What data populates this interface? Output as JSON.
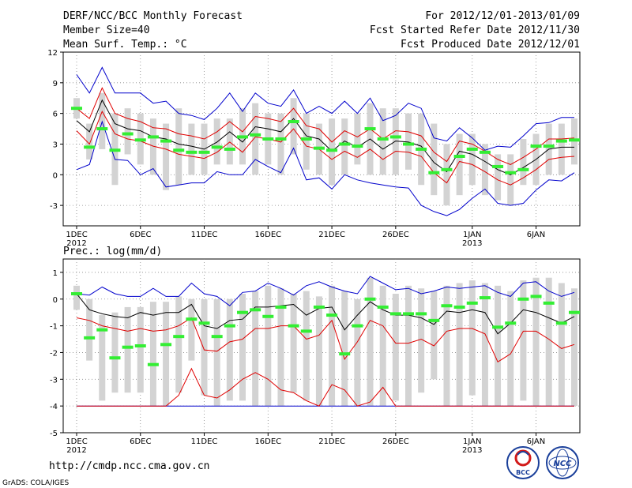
{
  "header": {
    "title": "DERF/NCC/BCC Monthly Forecast",
    "member": "Member Size=40",
    "variable": "Mean Surf. Temp.: °C",
    "period": "For 2012/12/01-2013/01/09",
    "refer": "Fcst Started Refer Date 2012/11/30",
    "produced": "Fcst Produced Date 2012/12/01"
  },
  "footer": {
    "url": "http://cmdp.ncc.cma.gov.cn",
    "credit": "GrADS: COLA/IGES",
    "logo1": "BCC",
    "logo2": "NCC"
  },
  "colors": {
    "box": "#d3d3d3",
    "mean": "#000000",
    "pct": "#e00000",
    "ext": "#0000cc",
    "median": "#33ee33"
  },
  "chart_data": [
    {
      "type": "box",
      "title": "Mean Surf. Temp.: °C",
      "ylim": [
        -5,
        12
      ],
      "yticks": [
        -3,
        0,
        3,
        6,
        9,
        12
      ],
      "xticks": [
        {
          "day": 1,
          "label": "1DEC",
          "sub": "2012"
        },
        {
          "day": 6,
          "label": "6DEC"
        },
        {
          "day": 11,
          "label": "11DEC"
        },
        {
          "day": 16,
          "label": "16DEC"
        },
        {
          "day": 21,
          "label": "21DEC"
        },
        {
          "day": 26,
          "label": "26DEC"
        },
        {
          "day": 32,
          "label": "1JAN",
          "sub": "2013"
        },
        {
          "day": 37,
          "label": "6JAN"
        }
      ],
      "days": [
        1,
        2,
        3,
        4,
        5,
        6,
        7,
        8,
        9,
        10,
        11,
        12,
        13,
        14,
        15,
        16,
        17,
        18,
        19,
        20,
        21,
        22,
        23,
        24,
        25,
        26,
        27,
        28,
        29,
        30,
        31,
        32,
        33,
        34,
        35,
        36,
        37,
        38,
        39,
        40
      ],
      "box_low": [
        5.5,
        1.5,
        2.5,
        -1,
        2,
        1,
        0,
        -1.5,
        -1,
        0,
        0,
        1,
        1,
        1,
        0,
        1,
        0,
        2,
        0.5,
        0,
        -1,
        0,
        1,
        0,
        0,
        0,
        0.5,
        -1,
        -2,
        -3,
        -2,
        -1,
        -2,
        -2.5,
        -3,
        -1,
        -1,
        0,
        0,
        1
      ],
      "box_high": [
        7.5,
        5,
        8,
        6,
        6.5,
        6,
        5.5,
        5,
        6.5,
        5,
        5,
        5.5,
        5.5,
        6.5,
        7,
        6,
        6,
        7.5,
        6,
        5,
        5.5,
        5.5,
        6,
        7,
        6.5,
        6.5,
        6,
        6,
        5,
        3,
        4,
        4,
        3,
        2,
        2,
        3.5,
        4,
        5,
        5,
        5.5
      ],
      "median": [
        6.5,
        2.7,
        4.5,
        2.4,
        4,
        3.4,
        3.7,
        3.3,
        2.4,
        2.2,
        2.2,
        2.7,
        2.5,
        3.7,
        3.9,
        3.5,
        3.5,
        5.2,
        3.5,
        2.6,
        2.4,
        3,
        2.8,
        4.5,
        3.5,
        3.7,
        3,
        2.5,
        0.2,
        0.5,
        1.8,
        2.5,
        2.2,
        0.8,
        0.2,
        0.5,
        2.8,
        2.8,
        3.3,
        3.4
      ],
      "mean": [
        5.3,
        4.2,
        7.3,
        5,
        4.5,
        4.3,
        3.7,
        3.5,
        3,
        2.8,
        2.5,
        3.2,
        4.2,
        3.2,
        4.7,
        4.5,
        4.2,
        5.5,
        3.8,
        3.5,
        2.3,
        3.3,
        2.7,
        3.5,
        2.5,
        3.3,
        3.2,
        2.8,
        1.2,
        0.3,
        2.3,
        2,
        1.3,
        0.5,
        0,
        0.7,
        1.5,
        2.5,
        2.7,
        2.7
      ],
      "pct_high": [
        6.5,
        5.5,
        8.5,
        6,
        5.5,
        5.2,
        4.6,
        4.5,
        4,
        3.8,
        3.5,
        4.2,
        5.2,
        4.2,
        5.7,
        5.5,
        5.2,
        6.5,
        4.8,
        4.5,
        3.2,
        4.3,
        3.7,
        4.5,
        3.5,
        4.3,
        4.2,
        3.8,
        2.2,
        1.3,
        3.3,
        3,
        2.3,
        1.5,
        1,
        1.7,
        2.5,
        3.5,
        3.5,
        3.6
      ],
      "pct_low": [
        4.3,
        3,
        6.2,
        4,
        3.5,
        3.3,
        2.8,
        2.5,
        2,
        1.8,
        1.6,
        2.2,
        3.2,
        2.2,
        3.7,
        3.5,
        3.2,
        4.5,
        2.8,
        2.5,
        1.5,
        2.3,
        1.7,
        2.5,
        1.5,
        2.3,
        2.2,
        1.8,
        0.2,
        -0.8,
        1.3,
        1,
        0.3,
        -0.5,
        -1,
        -0.3,
        0.5,
        1.5,
        1.7,
        1.8
      ],
      "ext_high": [
        9.8,
        8,
        10.5,
        8,
        8,
        8,
        7,
        7.2,
        6,
        5.8,
        5.4,
        6.5,
        8,
        6.2,
        8,
        7,
        6.7,
        8.3,
        6,
        6.7,
        6,
        7.2,
        6,
        7.5,
        5.3,
        5.8,
        7,
        6.5,
        3.6,
        3.3,
        4.6,
        3.6,
        2.4,
        2.8,
        2.7,
        3.8,
        5,
        5.1,
        5.6,
        5.6
      ],
      "ext_low": [
        0.5,
        1,
        5.2,
        1.5,
        1.4,
        0,
        0.6,
        -1.2,
        -1,
        -0.8,
        -0.8,
        0.3,
        0,
        0,
        1.5,
        0.8,
        0.2,
        2.6,
        -0.5,
        -0.3,
        -1.4,
        0,
        -0.5,
        -0.8,
        -1,
        -1.2,
        -1.3,
        -3,
        -3.6,
        -4,
        -3.4,
        -2.3,
        -1.4,
        -2.8,
        -3,
        -2.8,
        -1.5,
        -0.5,
        -0.6,
        0.2
      ]
    },
    {
      "type": "box",
      "title": "Prec.: log(mm/d)",
      "ylim": [
        -5,
        1.5
      ],
      "yticks": [
        -5,
        -4,
        -3,
        -2,
        -1,
        0,
        1
      ],
      "xticks": [
        {
          "day": 1,
          "label": "1DEC",
          "sub": "2012"
        },
        {
          "day": 6,
          "label": "6DEC"
        },
        {
          "day": 11,
          "label": "11DEC"
        },
        {
          "day": 16,
          "label": "16DEC"
        },
        {
          "day": 21,
          "label": "21DEC"
        },
        {
          "day": 26,
          "label": "26DEC"
        },
        {
          "day": 32,
          "label": "1JAN",
          "sub": "2013"
        },
        {
          "day": 37,
          "label": "6JAN"
        }
      ],
      "days": [
        1,
        2,
        3,
        4,
        5,
        6,
        7,
        8,
        9,
        10,
        11,
        12,
        13,
        14,
        15,
        16,
        17,
        18,
        19,
        20,
        21,
        22,
        23,
        24,
        25,
        26,
        27,
        28,
        29,
        30,
        31,
        32,
        33,
        34,
        35,
        36,
        37,
        38,
        39,
        40
      ],
      "box_low": [
        -0.4,
        -2.3,
        -3.8,
        -3.5,
        -3.5,
        -3.5,
        -4,
        -4,
        -3.5,
        -2.3,
        -3.6,
        -4,
        -3.8,
        -3.8,
        -4,
        -4,
        -4,
        -3.5,
        -3.8,
        -4,
        -4,
        -4,
        -4,
        -4,
        -4,
        -3.8,
        -4,
        -3.5,
        -3,
        -4,
        -4,
        -3.6,
        -4,
        -4,
        -4,
        -3.8,
        -4,
        -4,
        -4,
        -4
      ],
      "box_high": [
        0.5,
        0,
        -0.6,
        -0.5,
        -0.3,
        -0.3,
        -0.1,
        -0.1,
        0.1,
        0,
        0,
        0,
        0,
        0.2,
        0.3,
        0.5,
        0.4,
        0.2,
        0.3,
        0.1,
        0.5,
        0.3,
        0,
        0.8,
        0.5,
        0.2,
        0.5,
        0.4,
        0.3,
        0.5,
        0.6,
        0.7,
        0.6,
        0.5,
        0.3,
        0.7,
        0.8,
        0.8,
        0.6,
        0.4
      ],
      "median": [
        0.2,
        -1.45,
        -1.15,
        -2.2,
        -1.8,
        -1.75,
        -2.45,
        -1.7,
        -1.4,
        -0.75,
        -0.9,
        -1.4,
        -1,
        -0.5,
        -0.4,
        -0.65,
        -0.3,
        -1,
        -1.2,
        -0.3,
        -0.6,
        -2.05,
        -1,
        0,
        -0.3,
        -0.55,
        -0.55,
        -0.55,
        -0.8,
        -0.25,
        -0.3,
        -0.15,
        0.05,
        -1.05,
        -0.9,
        0,
        0.1,
        -0.15,
        -0.9,
        -0.5
      ],
      "mean": [
        0.2,
        -0.4,
        -0.55,
        -0.65,
        -0.7,
        -0.5,
        -0.6,
        -0.5,
        -0.5,
        -0.2,
        -1,
        -1.1,
        -0.8,
        -0.75,
        -0.3,
        -0.3,
        -0.25,
        -0.2,
        -0.6,
        -0.35,
        -0.3,
        -1.15,
        -0.6,
        -0.1,
        -0.4,
        -0.6,
        -0.6,
        -0.7,
        -0.95,
        -0.45,
        -0.5,
        -0.4,
        -0.5,
        -1.3,
        -0.9,
        -0.4,
        -0.5,
        -0.7,
        -0.9,
        -0.65
      ],
      "pct_high": [
        -0.7,
        -0.8,
        -1,
        -1.1,
        -1.2,
        -1.1,
        -1.2,
        -1.15,
        -1,
        -0.7,
        -1.9,
        -1.95,
        -1.6,
        -1.5,
        -1.1,
        -1.1,
        -1,
        -1,
        -1.5,
        -1.35,
        -0.8,
        -2.25,
        -1.6,
        -0.8,
        -1,
        -1.65,
        -1.65,
        -1.5,
        -1.75,
        -1.2,
        -1.1,
        -1.1,
        -1.3,
        -2.35,
        -2.05,
        -1.2,
        -1.2,
        -1.5,
        -1.85,
        -1.7
      ],
      "pct_low": [
        -4,
        -4,
        -4,
        -4,
        -4,
        -4,
        -4,
        -4,
        -3.6,
        -2.6,
        -3.6,
        -3.7,
        -3.4,
        -3,
        -2.75,
        -3,
        -3.4,
        -3.5,
        -3.8,
        -4,
        -3.2,
        -3.4,
        -4,
        -3.85,
        -3.3,
        -4,
        -4,
        -4,
        -4,
        -4,
        -4,
        -4,
        -4,
        -4,
        -4,
        -4,
        -4,
        -4,
        -4,
        -4
      ],
      "ext_high": [
        0.2,
        0.15,
        0.45,
        0.2,
        0.1,
        0.1,
        0.4,
        0.1,
        0.1,
        0.6,
        0.2,
        0.1,
        -0.25,
        0.25,
        0.3,
        0.6,
        0.4,
        0.15,
        0.5,
        0.65,
        0.45,
        0.3,
        0.2,
        0.85,
        0.6,
        0.35,
        0.4,
        0.2,
        0.3,
        0.45,
        0.4,
        0.45,
        0.5,
        0.25,
        0.1,
        0.6,
        0.65,
        0.3,
        0.1,
        0.25
      ],
      "ext_low": [
        -4,
        -4,
        -4,
        -4,
        -4,
        -4,
        -4,
        -4,
        -4,
        -4,
        -4,
        -4,
        -4,
        -4,
        -4,
        -4,
        -4,
        -4,
        -4,
        -4,
        -4,
        -4,
        -4,
        -4,
        -4,
        -4,
        -4,
        -4,
        -4,
        -4,
        -4,
        -4,
        -4,
        -4,
        -4,
        -4,
        -4,
        -4,
        -4,
        -4
      ]
    }
  ]
}
